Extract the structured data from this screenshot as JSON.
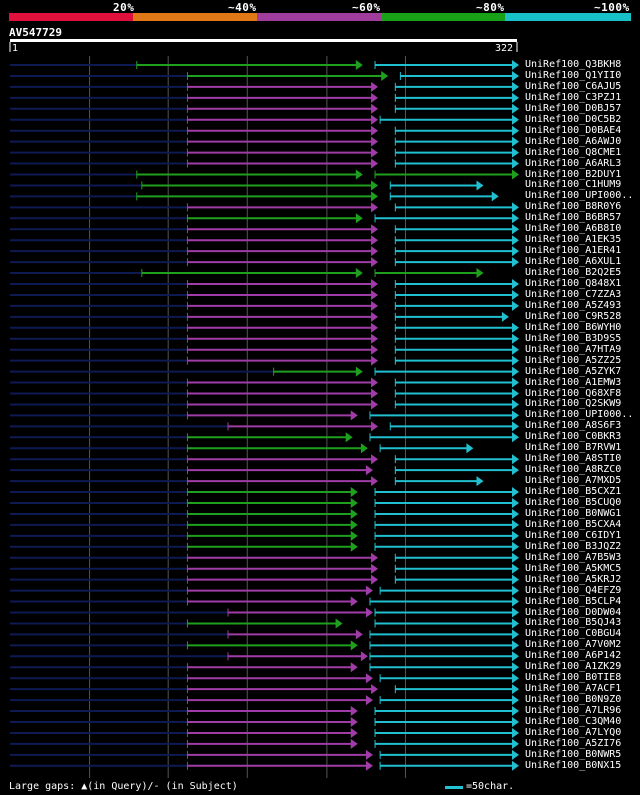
{
  "header": {
    "pct_labels": [
      "20%",
      "~40%",
      "~60%",
      "~80%",
      "~100%"
    ],
    "colors": [
      "#e0103c",
      "#e07818",
      "#a03c9c",
      "#18a018",
      "#18c0c8"
    ],
    "query_name": "AV547729",
    "ruler_start": "1",
    "ruler_end": "322"
  },
  "colors": {
    "magenta": "#a03ca8",
    "green": "#1ea01e",
    "cyan": "#20c0d0",
    "navy": "#0e1a52"
  },
  "hits": [
    {
      "name": "UniRef100_Q3BKH8",
      "start": 0.25,
      "mid": 0.69,
      "end": 1.0,
      "c1": "green",
      "c2": "cyan",
      "gap": 0.72
    },
    {
      "name": "UniRef100_Q1YII0",
      "start": 0.35,
      "mid": 0.74,
      "end": 1.0,
      "c1": "green",
      "c2": "cyan",
      "gap": 0.77
    },
    {
      "name": "UniRef100_C6AJU5",
      "start": 0.35,
      "mid": 0.72,
      "end": 1.0,
      "c1": "magenta",
      "c2": "cyan",
      "gap": 0.76
    },
    {
      "name": "UniRef100_C3PZJ1",
      "start": 0.35,
      "mid": 0.72,
      "end": 1.0,
      "c1": "magenta",
      "c2": "cyan",
      "gap": 0.76
    },
    {
      "name": "UniRef100_D0BJ57",
      "start": 0.35,
      "mid": 0.72,
      "end": 1.0,
      "c1": "magenta",
      "c2": "cyan",
      "gap": 0.76
    },
    {
      "name": "UniRef100_D0C5B2",
      "start": 0.35,
      "mid": 0.72,
      "end": 1.0,
      "c1": "magenta",
      "c2": "cyan",
      "gap": 0.73
    },
    {
      "name": "UniRef100_D0BAE4",
      "start": 0.35,
      "mid": 0.72,
      "end": 1.0,
      "c1": "magenta",
      "c2": "cyan",
      "gap": 0.76
    },
    {
      "name": "UniRef100_A6AWJ0",
      "start": 0.35,
      "mid": 0.72,
      "end": 1.0,
      "c1": "magenta",
      "c2": "cyan",
      "gap": 0.76
    },
    {
      "name": "UniRef100_Q8CME1",
      "start": 0.35,
      "mid": 0.72,
      "end": 1.0,
      "c1": "magenta",
      "c2": "cyan",
      "gap": 0.76
    },
    {
      "name": "UniRef100_A6ARL3",
      "start": 0.35,
      "mid": 0.72,
      "end": 1.0,
      "c1": "magenta",
      "c2": "cyan",
      "gap": 0.76
    },
    {
      "name": "UniRef100_B2DUY1",
      "start": 0.25,
      "mid": 0.69,
      "end": 1.0,
      "c1": "green",
      "c2": "green",
      "gap": 0.72
    },
    {
      "name": "UniRef100_C1HUM9",
      "start": 0.26,
      "mid": 0.72,
      "end": 0.93,
      "c1": "green",
      "c2": "cyan",
      "gap": 0.75
    },
    {
      "name": "UniRef100_UPI000..",
      "start": 0.25,
      "mid": 0.72,
      "end": 0.96,
      "c1": "green",
      "c2": "cyan",
      "gap": 0.75
    },
    {
      "name": "UniRef100_B8R0Y6",
      "start": 0.35,
      "mid": 0.72,
      "end": 1.0,
      "c1": "magenta",
      "c2": "cyan",
      "gap": 0.76
    },
    {
      "name": "UniRef100_B6BR57",
      "start": 0.35,
      "mid": 0.69,
      "end": 1.0,
      "c1": "green",
      "c2": "cyan",
      "gap": 0.72
    },
    {
      "name": "UniRef100_A6B8I0",
      "start": 0.35,
      "mid": 0.72,
      "end": 1.0,
      "c1": "magenta",
      "c2": "cyan",
      "gap": 0.76
    },
    {
      "name": "UniRef100_A1EK35",
      "start": 0.35,
      "mid": 0.72,
      "end": 1.0,
      "c1": "magenta",
      "c2": "cyan",
      "gap": 0.76
    },
    {
      "name": "UniRef100_A1ER41",
      "start": 0.35,
      "mid": 0.72,
      "end": 1.0,
      "c1": "magenta",
      "c2": "cyan",
      "gap": 0.76
    },
    {
      "name": "UniRef100_A6XUL1",
      "start": 0.35,
      "mid": 0.72,
      "end": 1.0,
      "c1": "magenta",
      "c2": "cyan",
      "gap": 0.76
    },
    {
      "name": "UniRef100_B2Q2E5",
      "start": 0.26,
      "mid": 0.69,
      "end": 0.93,
      "c1": "green",
      "c2": "green",
      "gap": 0.72
    },
    {
      "name": "UniRef100_Q848X1",
      "start": 0.35,
      "mid": 0.72,
      "end": 1.0,
      "c1": "magenta",
      "c2": "cyan",
      "gap": 0.76
    },
    {
      "name": "UniRef100_C7ZZA3",
      "start": 0.35,
      "mid": 0.72,
      "end": 1.0,
      "c1": "magenta",
      "c2": "cyan",
      "gap": 0.76
    },
    {
      "name": "UniRef100_A5Z493",
      "start": 0.35,
      "mid": 0.72,
      "end": 1.0,
      "c1": "magenta",
      "c2": "cyan",
      "gap": 0.76
    },
    {
      "name": "UniRef100_C9R528",
      "start": 0.35,
      "mid": 0.72,
      "end": 0.98,
      "c1": "magenta",
      "c2": "cyan",
      "gap": 0.76
    },
    {
      "name": "UniRef100_B6WYH0",
      "start": 0.35,
      "mid": 0.72,
      "end": 1.0,
      "c1": "magenta",
      "c2": "cyan",
      "gap": 0.76
    },
    {
      "name": "UniRef100_B3D9S5",
      "start": 0.35,
      "mid": 0.72,
      "end": 1.0,
      "c1": "magenta",
      "c2": "cyan",
      "gap": 0.76
    },
    {
      "name": "UniRef100_A7HTA9",
      "start": 0.35,
      "mid": 0.72,
      "end": 1.0,
      "c1": "magenta",
      "c2": "cyan",
      "gap": 0.76
    },
    {
      "name": "UniRef100_A5ZZ25",
      "start": 0.35,
      "mid": 0.72,
      "end": 1.0,
      "c1": "magenta",
      "c2": "cyan",
      "gap": 0.76
    },
    {
      "name": "UniRef100_A5ZYK7",
      "start": 0.52,
      "mid": 0.69,
      "end": 1.0,
      "c1": "green",
      "c2": "cyan",
      "gap": 0.72
    },
    {
      "name": "UniRef100_A1EMW3",
      "start": 0.35,
      "mid": 0.72,
      "end": 1.0,
      "c1": "magenta",
      "c2": "cyan",
      "gap": 0.76
    },
    {
      "name": "UniRef100_Q68XF8",
      "start": 0.35,
      "mid": 0.72,
      "end": 1.0,
      "c1": "magenta",
      "c2": "cyan",
      "gap": 0.76
    },
    {
      "name": "UniRef100_Q2SKW9",
      "start": 0.35,
      "mid": 0.72,
      "end": 1.0,
      "c1": "magenta",
      "c2": "cyan",
      "gap": 0.76
    },
    {
      "name": "UniRef100_UPI000..",
      "start": 0.35,
      "mid": 0.68,
      "end": 1.0,
      "c1": "magenta",
      "c2": "cyan",
      "gap": 0.71
    },
    {
      "name": "UniRef100_A8S6F3",
      "start": 0.43,
      "mid": 0.72,
      "end": 1.0,
      "c1": "magenta",
      "c2": "cyan",
      "gap": 0.75
    },
    {
      "name": "UniRef100_C0BKR3",
      "start": 0.35,
      "mid": 0.67,
      "end": 1.0,
      "c1": "green",
      "c2": "cyan",
      "gap": 0.71
    },
    {
      "name": "UniRef100_B7RVW1",
      "start": 0.35,
      "mid": 0.7,
      "end": 0.91,
      "c1": "green",
      "c2": "cyan",
      "gap": 0.73
    },
    {
      "name": "UniRef100_A8STI0",
      "start": 0.35,
      "mid": 0.72,
      "end": 1.0,
      "c1": "magenta",
      "c2": "cyan",
      "gap": 0.76
    },
    {
      "name": "UniRef100_A8RZC0",
      "start": 0.35,
      "mid": 0.71,
      "end": 1.0,
      "c1": "magenta",
      "c2": "cyan",
      "gap": 0.76
    },
    {
      "name": "UniRef100_A7MXD5",
      "start": 0.35,
      "mid": 0.72,
      "end": 0.93,
      "c1": "magenta",
      "c2": "cyan",
      "gap": 0.76
    },
    {
      "name": "UniRef100_B5CXZ1",
      "start": 0.35,
      "mid": 0.68,
      "end": 1.0,
      "c1": "green",
      "c2": "cyan",
      "gap": 0.72
    },
    {
      "name": "UniRef100_B5CUQ0",
      "start": 0.35,
      "mid": 0.68,
      "end": 1.0,
      "c1": "green",
      "c2": "cyan",
      "gap": 0.72
    },
    {
      "name": "UniRef100_B0NWG1",
      "start": 0.35,
      "mid": 0.68,
      "end": 1.0,
      "c1": "green",
      "c2": "cyan",
      "gap": 0.72
    },
    {
      "name": "UniRef100_B5CXA4",
      "start": 0.35,
      "mid": 0.68,
      "end": 1.0,
      "c1": "green",
      "c2": "cyan",
      "gap": 0.72
    },
    {
      "name": "UniRef100_C6IDY1",
      "start": 0.35,
      "mid": 0.68,
      "end": 1.0,
      "c1": "green",
      "c2": "cyan",
      "gap": 0.72
    },
    {
      "name": "UniRef100_B3JQZ2",
      "start": 0.35,
      "mid": 0.68,
      "end": 1.0,
      "c1": "green",
      "c2": "cyan",
      "gap": 0.72
    },
    {
      "name": "UniRef100_A7B5W3",
      "start": 0.35,
      "mid": 0.72,
      "end": 1.0,
      "c1": "magenta",
      "c2": "cyan",
      "gap": 0.76
    },
    {
      "name": "UniRef100_A5KMC5",
      "start": 0.35,
      "mid": 0.72,
      "end": 1.0,
      "c1": "magenta",
      "c2": "cyan",
      "gap": 0.76
    },
    {
      "name": "UniRef100_A5KRJ2",
      "start": 0.35,
      "mid": 0.72,
      "end": 1.0,
      "c1": "magenta",
      "c2": "cyan",
      "gap": 0.76
    },
    {
      "name": "UniRef100_Q4EFZ9",
      "start": 0.35,
      "mid": 0.71,
      "end": 1.0,
      "c1": "magenta",
      "c2": "cyan",
      "gap": 0.73
    },
    {
      "name": "UniRef100_B5CLP4",
      "start": 0.35,
      "mid": 0.68,
      "end": 1.0,
      "c1": "magenta",
      "c2": "cyan",
      "gap": 0.71
    },
    {
      "name": "UniRef100_D0DW04",
      "start": 0.43,
      "mid": 0.71,
      "end": 1.0,
      "c1": "magenta",
      "c2": "cyan",
      "gap": 0.72
    },
    {
      "name": "UniRef100_B5QJ43",
      "start": 0.35,
      "mid": 0.65,
      "end": 1.0,
      "c1": "green",
      "c2": "cyan",
      "gap": 0.72
    },
    {
      "name": "UniRef100_C0BGU4",
      "start": 0.43,
      "mid": 0.69,
      "end": 1.0,
      "c1": "magenta",
      "c2": "cyan",
      "gap": 0.71
    },
    {
      "name": "UniRef100_A7V0M2",
      "start": 0.35,
      "mid": 0.68,
      "end": 1.0,
      "c1": "green",
      "c2": "cyan",
      "gap": 0.71
    },
    {
      "name": "UniRef100_A6P142",
      "start": 0.43,
      "mid": 0.7,
      "end": 1.0,
      "c1": "magenta",
      "c2": "cyan",
      "gap": 0.71
    },
    {
      "name": "UniRef100_A1ZK29",
      "start": 0.35,
      "mid": 0.68,
      "end": 1.0,
      "c1": "magenta",
      "c2": "cyan",
      "gap": 0.71
    },
    {
      "name": "UniRef100_B0TIE8",
      "start": 0.35,
      "mid": 0.71,
      "end": 1.0,
      "c1": "magenta",
      "c2": "cyan",
      "gap": 0.73
    },
    {
      "name": "UniRef100_A7ACF1",
      "start": 0.35,
      "mid": 0.72,
      "end": 1.0,
      "c1": "magenta",
      "c2": "cyan",
      "gap": 0.76
    },
    {
      "name": "UniRef100_B0N9Z0",
      "start": 0.35,
      "mid": 0.71,
      "end": 1.0,
      "c1": "magenta",
      "c2": "cyan",
      "gap": 0.73
    },
    {
      "name": "UniRef100_A7LR96",
      "start": 0.35,
      "mid": 0.68,
      "end": 1.0,
      "c1": "magenta",
      "c2": "cyan",
      "gap": 0.72
    },
    {
      "name": "UniRef100_C3QM40",
      "start": 0.35,
      "mid": 0.68,
      "end": 1.0,
      "c1": "magenta",
      "c2": "cyan",
      "gap": 0.72
    },
    {
      "name": "UniRef100_A7LYQ0",
      "start": 0.35,
      "mid": 0.68,
      "end": 1.0,
      "c1": "magenta",
      "c2": "cyan",
      "gap": 0.72
    },
    {
      "name": "UniRef100_A5ZI76",
      "start": 0.35,
      "mid": 0.68,
      "end": 1.0,
      "c1": "magenta",
      "c2": "cyan",
      "gap": 0.72
    },
    {
      "name": "UniRef100_B0NWR5",
      "start": 0.35,
      "mid": 0.71,
      "end": 1.0,
      "c1": "magenta",
      "c2": "cyan",
      "gap": 0.73
    },
    {
      "name": "UniRef100_B0NX15",
      "start": 0.35,
      "mid": 0.71,
      "end": 1.0,
      "c1": "magenta",
      "c2": "cyan",
      "gap": 0.73
    }
  ],
  "footer": {
    "gaps_label": "Large gaps: ▲(in Query)/- (in Subject)",
    "legend_label": "=50char."
  }
}
